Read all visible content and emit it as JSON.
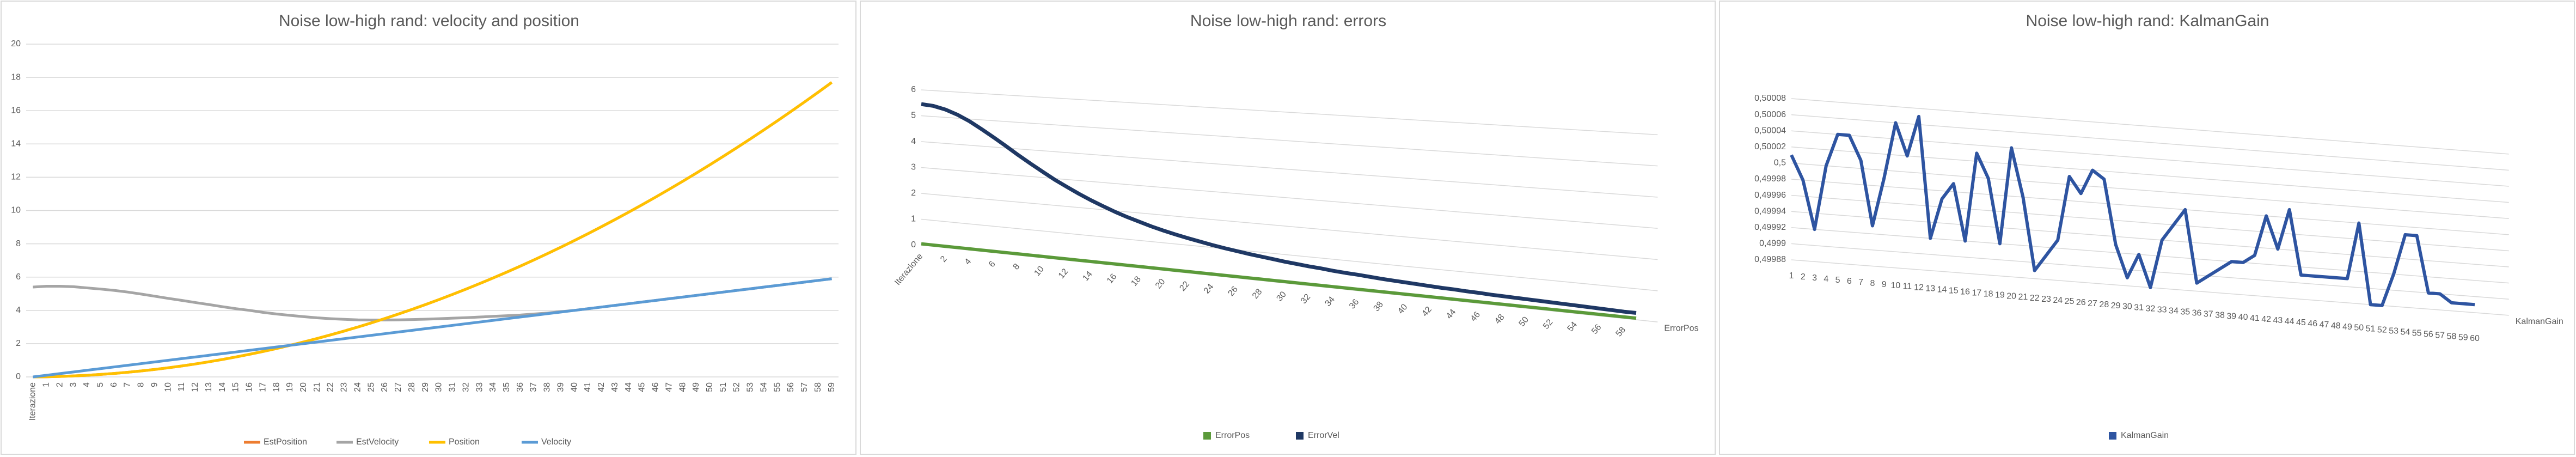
{
  "chart_data": [
    {
      "type": "line",
      "title": "Noise low-high rand: velocity and position",
      "categories": [
        "Iterazione",
        "1",
        "2",
        "3",
        "4",
        "5",
        "6",
        "7",
        "8",
        "9",
        "10",
        "11",
        "12",
        "13",
        "14",
        "15",
        "16",
        "17",
        "18",
        "19",
        "20",
        "21",
        "22",
        "23",
        "24",
        "25",
        "26",
        "27",
        "28",
        "29",
        "30",
        "31",
        "32",
        "33",
        "34",
        "35",
        "36",
        "37",
        "38",
        "39",
        "40",
        "41",
        "42",
        "43",
        "44",
        "45",
        "46",
        "47",
        "48",
        "49",
        "50",
        "51",
        "52",
        "53",
        "54",
        "55",
        "56",
        "57",
        "58",
        "59"
      ],
      "series": [
        {
          "name": "EstPosition",
          "color": "#ED7D31",
          "values": [
            0,
            0.01,
            0.03,
            0.06,
            0.1,
            0.15,
            0.21,
            0.28,
            0.36,
            0.45,
            0.55,
            0.66,
            0.78,
            0.91,
            1.05,
            1.2,
            1.36,
            1.53,
            1.71,
            1.9,
            2.1,
            2.31,
            2.53,
            2.76,
            3,
            3.25,
            3.51,
            3.78,
            4.06,
            4.35,
            4.65,
            4.96,
            5.28,
            5.61,
            5.95,
            6.3,
            6.66,
            7.03,
            7.41,
            7.8,
            8.2,
            8.61,
            9.03,
            9.46,
            9.9,
            10.35,
            10.81,
            11.28,
            11.76,
            12.25,
            12.75,
            13.26,
            13.78,
            14.31,
            14.85,
            15.4,
            15.96,
            16.53,
            17.11,
            17.7
          ]
        },
        {
          "name": "EstVelocity",
          "color": "#A5A5A5",
          "values": [
            5.4,
            5.45,
            5.45,
            5.42,
            5.35,
            5.28,
            5.2,
            5.1,
            4.98,
            4.85,
            4.72,
            4.6,
            4.47,
            4.35,
            4.22,
            4.1,
            4.0,
            3.88,
            3.78,
            3.7,
            3.62,
            3.55,
            3.5,
            3.46,
            3.43,
            3.42,
            3.42,
            3.43,
            3.45,
            3.47,
            3.5,
            3.53,
            3.56,
            3.6,
            3.64,
            3.68,
            3.72,
            3.78,
            3.84,
            3.92,
            4.0,
            4.1,
            4.2,
            4.3,
            4.4,
            4.5,
            4.6,
            4.7,
            4.8,
            4.9,
            5.0,
            5.1,
            5.2,
            5.3,
            5.4,
            5.5,
            5.6,
            5.7,
            5.8,
            5.9
          ]
        },
        {
          "name": "Position",
          "color": "#FFC000",
          "values": [
            0,
            0.01,
            0.03,
            0.06,
            0.1,
            0.15,
            0.21,
            0.28,
            0.36,
            0.45,
            0.55,
            0.66,
            0.78,
            0.91,
            1.05,
            1.2,
            1.36,
            1.53,
            1.71,
            1.9,
            2.1,
            2.31,
            2.53,
            2.76,
            3,
            3.25,
            3.51,
            3.78,
            4.06,
            4.35,
            4.65,
            4.96,
            5.28,
            5.61,
            5.95,
            6.3,
            6.66,
            7.03,
            7.41,
            7.8,
            8.2,
            8.61,
            9.03,
            9.46,
            9.9,
            10.35,
            10.81,
            11.28,
            11.76,
            12.25,
            12.75,
            13.26,
            13.78,
            14.31,
            14.85,
            15.4,
            15.96,
            16.53,
            17.11,
            17.7
          ]
        },
        {
          "name": "Velocity",
          "color": "#5B9BD5",
          "values": [
            0,
            0.1,
            0.2,
            0.3,
            0.4,
            0.5,
            0.6,
            0.7,
            0.8,
            0.9,
            1,
            1.1,
            1.2,
            1.3,
            1.4,
            1.5,
            1.6,
            1.7,
            1.8,
            1.9,
            2,
            2.1,
            2.2,
            2.3,
            2.4,
            2.5,
            2.6,
            2.7,
            2.8,
            2.9,
            3,
            3.1,
            3.2,
            3.3,
            3.4,
            3.5,
            3.6,
            3.7,
            3.8,
            3.9,
            4,
            4.1,
            4.2,
            4.3,
            4.4,
            4.5,
            4.6,
            4.7,
            4.8,
            4.9,
            5,
            5.1,
            5.2,
            5.3,
            5.4,
            5.5,
            5.6,
            5.7,
            5.8,
            5.9
          ]
        }
      ],
      "ylim": [
        0,
        20
      ],
      "yticks": [
        0,
        2,
        4,
        6,
        8,
        10,
        12,
        14,
        16,
        18,
        20
      ],
      "grid": true,
      "legend": "bottom"
    },
    {
      "type": "line3d",
      "title": "Noise low-high rand: errors",
      "categories": [
        "Iterazione",
        null,
        "2",
        null,
        "4",
        null,
        "6",
        null,
        "8",
        null,
        "10",
        null,
        "12",
        null,
        "14",
        null,
        "16",
        null,
        "18",
        null,
        "20",
        null,
        "22",
        null,
        "24",
        null,
        "26",
        null,
        "28",
        null,
        "30",
        null,
        "32",
        null,
        "34",
        null,
        "36",
        null,
        "38",
        null,
        "40",
        null,
        "42",
        null,
        "44",
        null,
        "46",
        null,
        "48",
        null,
        "50",
        null,
        "52",
        null,
        "54",
        null,
        "56",
        null,
        "58",
        null
      ],
      "series": [
        {
          "name": "ErrorPos",
          "color": "#5B9A3A",
          "values": [
            0.05,
            0.05,
            0.05,
            0.05,
            0.05,
            0.05,
            0.05,
            0.05,
            0.05,
            0.05,
            0.05,
            0.05,
            0.05,
            0.05,
            0.05,
            0.05,
            0.05,
            0.05,
            0.05,
            0.05,
            0.05,
            0.05,
            0.05,
            0.05,
            0.05,
            0.05,
            0.05,
            0.05,
            0.05,
            0.05,
            0.05,
            0.05,
            0.05,
            0.05,
            0.05,
            0.05,
            0.05,
            0.05,
            0.05,
            0.05,
            0.05,
            0.05,
            0.05,
            0.05,
            0.05,
            0.05,
            0.05,
            0.05,
            0.05,
            0.05,
            0.05,
            0.05,
            0.05,
            0.05,
            0.05,
            0.05,
            0.05,
            0.05,
            0.05,
            0.05
          ]
        },
        {
          "name": "ErrorVel",
          "color": "#1F3864",
          "values": [
            5.45,
            5.41,
            5.3,
            5.13,
            4.91,
            4.64,
            4.36,
            4.07,
            3.77,
            3.49,
            3.22,
            2.96,
            2.73,
            2.51,
            2.31,
            2.13,
            1.96,
            1.81,
            1.68,
            1.55,
            1.44,
            1.34,
            1.25,
            1.17,
            1.09,
            1.02,
            0.96,
            0.9,
            0.85,
            0.8,
            0.75,
            0.71,
            0.67,
            0.64,
            0.6,
            0.57,
            0.55,
            0.52,
            0.49,
            0.47,
            0.45,
            0.43,
            0.41,
            0.39,
            0.38,
            0.36,
            0.35,
            0.33,
            0.32,
            0.31,
            0.3,
            0.29,
            0.28,
            0.27,
            0.26,
            0.25,
            0.24,
            0.23,
            0.22,
            0.22
          ]
        }
      ],
      "ylim": [
        0,
        6
      ],
      "yticks": [
        0,
        1,
        2,
        3,
        4,
        5,
        6
      ],
      "grid": true,
      "legend": "bottom"
    },
    {
      "type": "line3d",
      "title": "Noise low-high rand: KalmanGain",
      "categories": [
        "1",
        "2",
        "3",
        "4",
        "5",
        "6",
        "7",
        "8",
        "9",
        "10",
        "11",
        "12",
        "13",
        "14",
        "15",
        "16",
        "17",
        "18",
        "19",
        "20",
        "21",
        "22",
        "23",
        "24",
        "25",
        "26",
        "27",
        "28",
        "29",
        "30",
        "31",
        "32",
        "33",
        "34",
        "35",
        "36",
        "37",
        "38",
        "39",
        "40",
        "41",
        "42",
        "43",
        "44",
        "45",
        "46",
        "47",
        "48",
        "49",
        "50",
        "51",
        "52",
        "53",
        "54",
        "55",
        "56",
        "57",
        "58",
        "59",
        "60"
      ],
      "series": [
        {
          "name": "KalmanGain",
          "color": "#2E54A1",
          "values": [
            0.50001,
            0.49998,
            0.49992,
            0.5,
            0.50004,
            0.50004,
            0.50001,
            0.49993,
            0.49999,
            0.50006,
            0.50002,
            0.50007,
            0.49992,
            0.49997,
            0.49999,
            0.49992,
            0.50003,
            0.5,
            0.49992,
            0.50004,
            0.49998,
            0.49989,
            0.49991,
            0.49993,
            0.50001,
            0.49999,
            0.50002,
            0.50001,
            0.49993,
            0.49989,
            0.49992,
            0.49988,
            0.49994,
            0.49996,
            0.49998,
            0.49989,
            0.4999,
            0.49991,
            0.49992,
            0.49992,
            0.49993,
            0.49998,
            0.49994,
            0.49999,
            0.49991,
            0.49991,
            0.49991,
            0.49991,
            0.49991,
            0.49998,
            0.49988,
            0.49988,
            0.49992,
            0.49997,
            0.49997,
            0.4999,
            0.4999,
            0.49989,
            0.49989,
            0.49989
          ]
        }
      ],
      "ylim": [
        0.49988,
        0.50008
      ],
      "yticks": [
        {
          "value": 0.49988,
          "label": "0,49988"
        },
        {
          "value": 0.4999,
          "label": "0,4999"
        },
        {
          "value": 0.49992,
          "label": "0,49992"
        },
        {
          "value": 0.49994,
          "label": "0,49994"
        },
        {
          "value": 0.49996,
          "label": "0,49996"
        },
        {
          "value": 0.49998,
          "label": "0,49998"
        },
        {
          "value": 0.5,
          "label": "0,5"
        },
        {
          "value": 0.50002,
          "label": "0,50002"
        },
        {
          "value": 0.50004,
          "label": "0,50004"
        },
        {
          "value": 0.50006,
          "label": "0,50006"
        },
        {
          "value": 0.50008,
          "label": "0,50008"
        }
      ],
      "grid": true,
      "legend": "bottom"
    }
  ]
}
